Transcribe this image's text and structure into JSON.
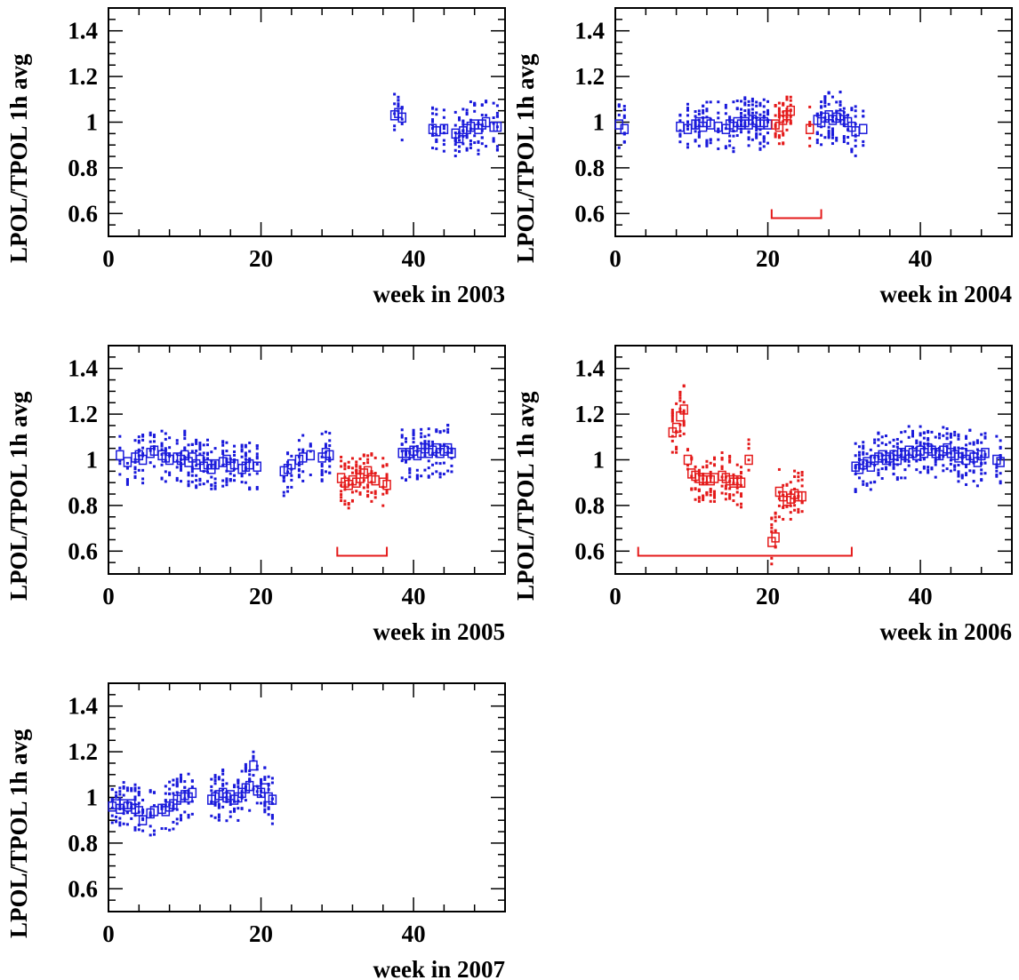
{
  "figure": {
    "shared_ylabel": "LPOL/TPOL 1h avg",
    "colors": {
      "good": "#1a1adb",
      "flagged": "#e41a1a",
      "axis": "#000000"
    }
  },
  "chart_data": [
    {
      "type": "scatter",
      "xlabel": "week in 2003",
      "ylabel": "LPOL/TPOL 1h avg",
      "xlim": [
        0,
        52
      ],
      "ylim": [
        0.5,
        1.5
      ],
      "xticks": [
        0,
        20,
        40
      ],
      "yticks": [
        0.6,
        0.8,
        1,
        1.2,
        1.4
      ],
      "grid": false,
      "series": [
        {
          "color": "blue",
          "marker": "box-with-dots",
          "points": [
            [
              37.5,
              1.03
            ],
            [
              38,
              1.04
            ],
            [
              38.5,
              1.02
            ],
            [
              42.5,
              0.97
            ],
            [
              43,
              0.96
            ],
            [
              44,
              0.97
            ],
            [
              45.5,
              0.95
            ],
            [
              46,
              0.93
            ],
            [
              46.5,
              0.96
            ],
            [
              47,
              0.97
            ],
            [
              47.5,
              0.98
            ],
            [
              48,
              0.99
            ],
            [
              48.5,
              0.97
            ],
            [
              49,
              0.99
            ],
            [
              49.5,
              1.0
            ],
            [
              50.5,
              0.98
            ],
            [
              51,
              0.98
            ]
          ]
        }
      ],
      "brackets": []
    },
    {
      "type": "scatter",
      "xlabel": "week in 2004",
      "ylabel": "LPOL/TPOL 1h avg",
      "xlim": [
        0,
        52
      ],
      "ylim": [
        0.5,
        1.5
      ],
      "xticks": [
        0,
        20,
        40
      ],
      "yticks": [
        0.6,
        0.8,
        1,
        1.2,
        1.4
      ],
      "grid": false,
      "series": [
        {
          "color": "blue",
          "marker": "box-with-dots",
          "points": [
            [
              0.5,
              0.99
            ],
            [
              1.2,
              0.97
            ],
            [
              8.5,
              0.98
            ],
            [
              9.5,
              0.97
            ],
            [
              10.5,
              0.99
            ],
            [
              11,
              1.0
            ],
            [
              11.5,
              0.98
            ],
            [
              12,
              1.0
            ],
            [
              12.5,
              0.99
            ],
            [
              13.5,
              0.98
            ],
            [
              14.5,
              0.97
            ],
            [
              15,
              0.99
            ],
            [
              15.5,
              0.98
            ],
            [
              16,
              1.0
            ],
            [
              16.5,
              0.99
            ],
            [
              17,
              1.0
            ],
            [
              17.5,
              0.99
            ],
            [
              18,
              1.01
            ],
            [
              18.5,
              1.0
            ],
            [
              19,
              0.99
            ],
            [
              19.5,
              1.0
            ],
            [
              20,
              0.99
            ],
            [
              26.5,
              1.01
            ],
            [
              27,
              1.0
            ],
            [
              27.5,
              1.02
            ],
            [
              28,
              1.03
            ],
            [
              28.5,
              1.01
            ],
            [
              29,
              1.02
            ],
            [
              29.5,
              1.03
            ],
            [
              30,
              1.01
            ],
            [
              30.5,
              1.0
            ],
            [
              31,
              0.98
            ],
            [
              31.5,
              0.96
            ],
            [
              32.5,
              0.97
            ]
          ]
        },
        {
          "color": "red",
          "marker": "box-with-dots",
          "points": [
            [
              21,
              0.99
            ],
            [
              21.5,
              0.98
            ],
            [
              22,
              1.01
            ],
            [
              22.5,
              1.03
            ],
            [
              23,
              1.05
            ],
            [
              25.5,
              0.97
            ]
          ]
        }
      ],
      "brackets": [
        [
          20.5,
          27,
          0.58
        ]
      ]
    },
    {
      "type": "scatter",
      "xlabel": "week in 2005",
      "ylabel": "LPOL/TPOL 1h avg",
      "xlim": [
        0,
        52
      ],
      "ylim": [
        0.5,
        1.5
      ],
      "xticks": [
        0,
        20,
        40
      ],
      "yticks": [
        0.6,
        0.8,
        1,
        1.2,
        1.4
      ],
      "grid": false,
      "series": [
        {
          "color": "blue",
          "marker": "box-with-dots",
          "points": [
            [
              1.5,
              1.02
            ],
            [
              2.5,
              0.99
            ],
            [
              3.5,
              1.01
            ],
            [
              4,
              1.02
            ],
            [
              4.5,
              1.0
            ],
            [
              5.5,
              1.03
            ],
            [
              6,
              1.04
            ],
            [
              7,
              1.02
            ],
            [
              7.5,
              1.01
            ],
            [
              8,
              1.0
            ],
            [
              9,
              1.01
            ],
            [
              9.5,
              1.0
            ],
            [
              10,
              1.02
            ],
            [
              10.5,
              0.99
            ],
            [
              11,
              1.01
            ],
            [
              11.5,
              0.98
            ],
            [
              12,
              1.0
            ],
            [
              12.5,
              0.97
            ],
            [
              13,
              0.98
            ],
            [
              13.5,
              0.96
            ],
            [
              14,
              0.98
            ],
            [
              15,
              0.99
            ],
            [
              15.5,
              1.0
            ],
            [
              16,
              0.97
            ],
            [
              16.5,
              0.98
            ],
            [
              17.5,
              0.96
            ],
            [
              18,
              0.97
            ],
            [
              18.5,
              0.98
            ],
            [
              19.5,
              0.97
            ],
            [
              23,
              0.95
            ],
            [
              23.5,
              0.96
            ],
            [
              24,
              0.98
            ],
            [
              25,
              1.0
            ],
            [
              25.5,
              1.01
            ],
            [
              26.5,
              1.02
            ],
            [
              28,
              1.01
            ],
            [
              28.5,
              1.03
            ],
            [
              29,
              1.02
            ],
            [
              38.5,
              1.03
            ],
            [
              39,
              1.02
            ],
            [
              39.5,
              1.03
            ],
            [
              40,
              1.04
            ],
            [
              40.5,
              1.02
            ],
            [
              41,
              1.03
            ],
            [
              41.5,
              1.05
            ],
            [
              42,
              1.03
            ],
            [
              42.5,
              1.04
            ],
            [
              43,
              1.05
            ],
            [
              43.5,
              1.03
            ],
            [
              44,
              1.04
            ],
            [
              44.5,
              1.05
            ],
            [
              45,
              1.03
            ]
          ]
        },
        {
          "color": "red",
          "marker": "box-with-dots",
          "points": [
            [
              30.5,
              0.92
            ],
            [
              31,
              0.9
            ],
            [
              31.5,
              0.89
            ],
            [
              32,
              0.91
            ],
            [
              32.5,
              0.9
            ],
            [
              33,
              0.92
            ],
            [
              33.5,
              0.94
            ],
            [
              34,
              0.95
            ],
            [
              34.5,
              0.92
            ],
            [
              35,
              0.91
            ],
            [
              36,
              0.9
            ],
            [
              36.5,
              0.89
            ]
          ]
        }
      ],
      "brackets": [
        [
          30,
          36.5,
          0.58
        ]
      ]
    },
    {
      "type": "scatter",
      "xlabel": "week in 2006",
      "ylabel": "LPOL/TPOL 1h avg",
      "xlim": [
        0,
        52
      ],
      "ylim": [
        0.5,
        1.5
      ],
      "xticks": [
        0,
        20,
        40
      ],
      "yticks": [
        0.6,
        0.8,
        1,
        1.2,
        1.4
      ],
      "grid": false,
      "series": [
        {
          "color": "blue",
          "marker": "box-with-dots",
          "points": [
            [
              31.5,
              0.97
            ],
            [
              32,
              0.96
            ],
            [
              32.5,
              0.98
            ],
            [
              33,
              0.99
            ],
            [
              33.5,
              0.97
            ],
            [
              34,
              1.0
            ],
            [
              34.5,
              1.01
            ],
            [
              35,
              1.02
            ],
            [
              35.5,
              1.0
            ],
            [
              36,
              1.01
            ],
            [
              36.5,
              1.02
            ],
            [
              37,
              1.0
            ],
            [
              37.5,
              1.03
            ],
            [
              38,
              1.02
            ],
            [
              38.5,
              1.04
            ],
            [
              39,
              1.03
            ],
            [
              39.5,
              1.02
            ],
            [
              40,
              1.04
            ],
            [
              40.5,
              1.03
            ],
            [
              41,
              1.05
            ],
            [
              41.5,
              1.04
            ],
            [
              42,
              1.03
            ],
            [
              42.5,
              1.02
            ],
            [
              43,
              1.04
            ],
            [
              43.5,
              1.05
            ],
            [
              44,
              1.03
            ],
            [
              44.5,
              1.02
            ],
            [
              45,
              1.01
            ],
            [
              45.5,
              1.03
            ],
            [
              46,
              1.0
            ],
            [
              46.5,
              1.02
            ],
            [
              47,
              1.01
            ],
            [
              47.5,
              0.99
            ],
            [
              48,
              1.02
            ],
            [
              48.5,
              1.03
            ],
            [
              50,
              1.0
            ],
            [
              50.5,
              0.99
            ]
          ]
        },
        {
          "color": "red",
          "marker": "box-with-dots",
          "points": [
            [
              7.5,
              1.12
            ],
            [
              8,
              1.14
            ],
            [
              8.5,
              1.19
            ],
            [
              9,
              1.22
            ],
            [
              9.5,
              1.0
            ],
            [
              10,
              0.94
            ],
            [
              10.5,
              0.93
            ],
            [
              11,
              0.92
            ],
            [
              11.5,
              0.91
            ],
            [
              12,
              0.92
            ],
            [
              12.5,
              0.91
            ],
            [
              13,
              0.92
            ],
            [
              14,
              0.93
            ],
            [
              14.5,
              0.92
            ],
            [
              15,
              0.91
            ],
            [
              15.5,
              0.9
            ],
            [
              16,
              0.91
            ],
            [
              16.5,
              0.9
            ],
            [
              17.5,
              1.0
            ],
            [
              20.5,
              0.64
            ],
            [
              21,
              0.66
            ],
            [
              21.5,
              0.86
            ],
            [
              22,
              0.84
            ],
            [
              22.5,
              0.82
            ],
            [
              23,
              0.83
            ],
            [
              23.5,
              0.85
            ],
            [
              24,
              0.84
            ],
            [
              24.5,
              0.84
            ]
          ]
        }
      ],
      "brackets": [
        [
          3,
          31,
          0.58
        ]
      ]
    },
    {
      "type": "scatter",
      "xlabel": "week in 2007",
      "ylabel": "LPOL/TPOL 1h avg",
      "xlim": [
        0,
        52
      ],
      "ylim": [
        0.5,
        1.5
      ],
      "xticks": [
        0,
        20,
        40
      ],
      "yticks": [
        0.6,
        0.8,
        1,
        1.2,
        1.4
      ],
      "grid": false,
      "series": [
        {
          "color": "blue",
          "marker": "box-with-dots",
          "points": [
            [
              0.5,
              0.96
            ],
            [
              1,
              0.97
            ],
            [
              1.5,
              0.95
            ],
            [
              2,
              0.97
            ],
            [
              2.5,
              0.96
            ],
            [
              3,
              0.97
            ],
            [
              3.5,
              0.95
            ],
            [
              4,
              0.94
            ],
            [
              4.5,
              0.9
            ],
            [
              5.5,
              0.93
            ],
            [
              6,
              0.94
            ],
            [
              7,
              0.95
            ],
            [
              7.5,
              0.94
            ],
            [
              8,
              0.96
            ],
            [
              8.5,
              0.97
            ],
            [
              9,
              0.99
            ],
            [
              9.5,
              1.0
            ],
            [
              10,
              1.01
            ],
            [
              10.5,
              1.0
            ],
            [
              11,
              1.02
            ],
            [
              13.5,
              0.99
            ],
            [
              14,
              1.0
            ],
            [
              14.5,
              1.01
            ],
            [
              15,
              1.02
            ],
            [
              15.5,
              1.0
            ],
            [
              16,
              1.01
            ],
            [
              16.5,
              0.99
            ],
            [
              17,
              1.0
            ],
            [
              17.5,
              1.02
            ],
            [
              18,
              1.04
            ],
            [
              18.5,
              1.05
            ],
            [
              19,
              1.14
            ],
            [
              19.5,
              1.03
            ],
            [
              20,
              1.02
            ],
            [
              20.5,
              1.04
            ],
            [
              21,
              1.0
            ],
            [
              21.5,
              0.99
            ]
          ]
        }
      ],
      "brackets": []
    }
  ]
}
